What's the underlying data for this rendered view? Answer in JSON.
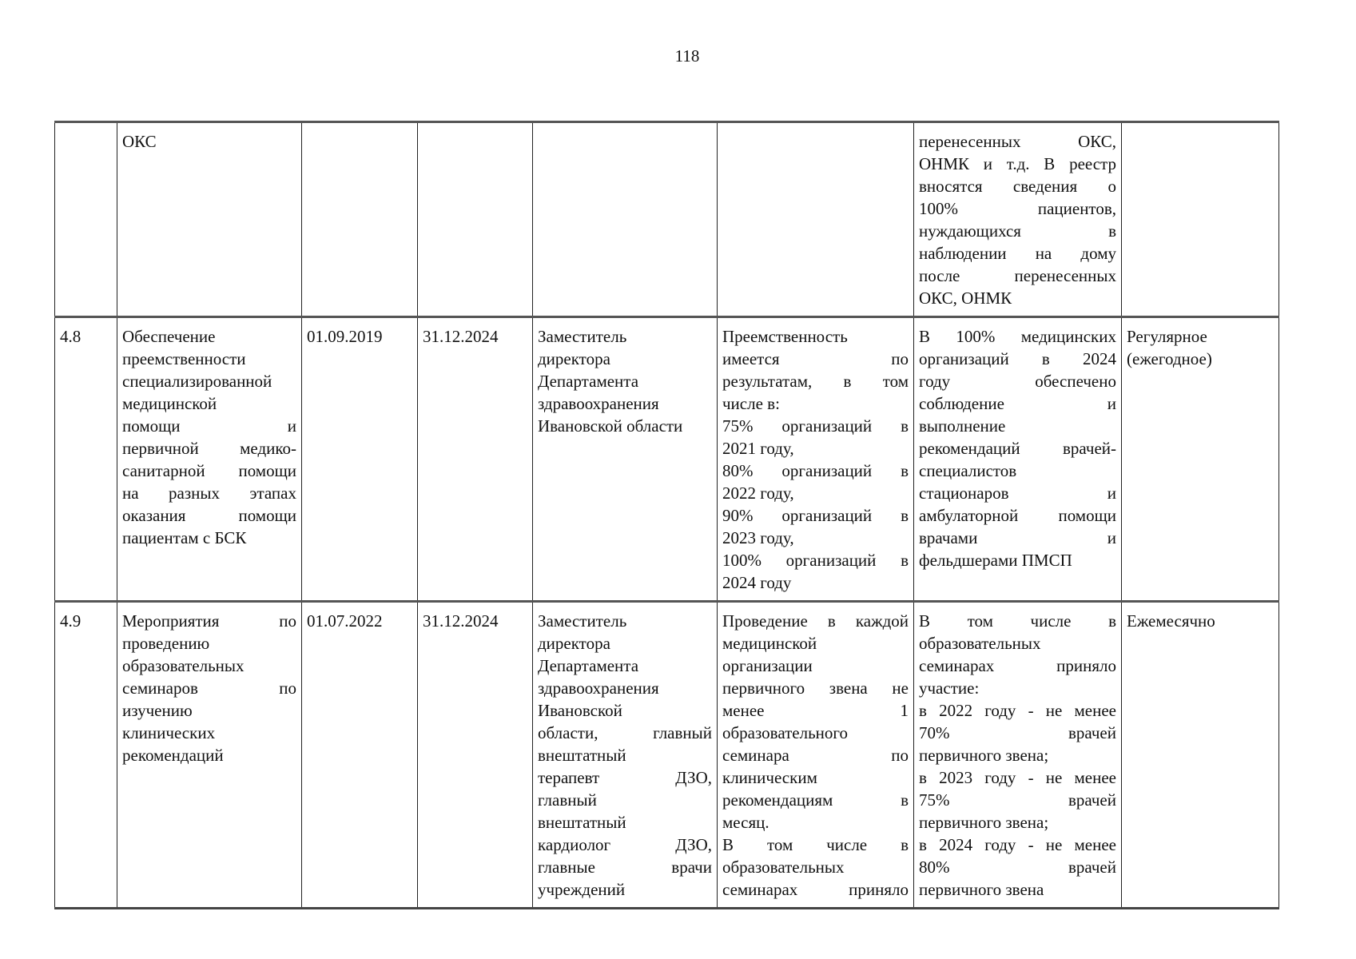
{
  "page_number": "118",
  "rows": [
    {
      "cells": [
        [],
        [
          [
            "ОКС"
          ]
        ],
        [],
        [],
        [],
        [],
        [
          [
            "перенесенных ОКС,",
            "ОНМК и т.д. В реестр",
            "вносятся сведения о",
            "100% пациентов,",
            "нуждающихся в",
            "наблюдении на дому",
            "после перенесенных",
            "ОКС, ОНМК"
          ]
        ],
        []
      ]
    },
    {
      "cells": [
        [
          [
            "4.8"
          ]
        ],
        [
          [
            "Обеспечение",
            "преемственности",
            "специализированной",
            "медицинской",
            "помощи и",
            "первичной медико-",
            "санитарной помощи",
            "на разных этапах",
            "оказания помощи",
            "пациентам с БСК"
          ]
        ],
        [
          [
            "01.09.2019"
          ]
        ],
        [
          [
            "31.12.2024"
          ]
        ],
        [
          [
            "Заместитель",
            "директора",
            "Департамента",
            "здравоохранения",
            "Ивановской области"
          ]
        ],
        [
          [
            "Преемственность",
            "имеется по",
            "результатам, в том",
            "числе в:"
          ],
          [
            "75% организаций в",
            "2021 году,"
          ],
          [
            "80% организаций в",
            "2022 году,"
          ],
          [
            "90% организаций в",
            "2023 году,"
          ],
          [
            "100% организаций в",
            "2024 году"
          ]
        ],
        [
          [
            "В 100% медицинских",
            "организаций в 2024",
            "году обеспечено",
            "соблюдение и",
            "выполнение",
            "рекомендаций врачей-",
            "специалистов",
            "стационаров и",
            "амбулаторной помощи",
            "врачами и",
            "фельдшерами ПМСП"
          ]
        ],
        [
          [
            "Регулярное",
            "(ежегодное)"
          ]
        ]
      ]
    },
    {
      "cells": [
        [
          [
            "4.9"
          ]
        ],
        [
          [
            "Мероприятия по",
            "проведению",
            "образовательных",
            "семинаров по",
            "изучению",
            "клинических",
            "рекомендаций"
          ]
        ],
        [
          [
            "01.07.2022"
          ]
        ],
        [
          [
            "31.12.2024"
          ]
        ],
        [
          [
            "Заместитель",
            "директора",
            "Департамента",
            "здравоохранения",
            "Ивановской",
            "области, главный",
            "внештатный",
            "терапевт ДЗО,",
            "главный",
            "внештатный",
            "кардиолог ДЗО,",
            "главные врачи",
            "учреждений"
          ]
        ],
        [
          [
            "Проведение в каждой",
            "медицинской",
            "организации",
            "первичного звена не",
            "менее 1",
            "образовательного",
            "семинара по",
            "клиническим",
            "рекомендациям в",
            "месяц."
          ],
          [
            "В том числе в",
            "образовательных",
            "семинарах приняло",
            ""
          ]
        ],
        [
          [
            "В том числе в",
            "образовательных",
            "семинарах приняло",
            "участие:"
          ],
          [
            "в 2022 году - не менее",
            "70% врачей",
            "первичного звена;"
          ],
          [
            "в 2023 году - не менее",
            "75% врачей",
            "первичного звена;"
          ],
          [
            "в 2024 году - не менее",
            "80% врачей",
            "первичного звена"
          ]
        ],
        [
          [
            "Ежемесячно"
          ]
        ]
      ]
    }
  ]
}
